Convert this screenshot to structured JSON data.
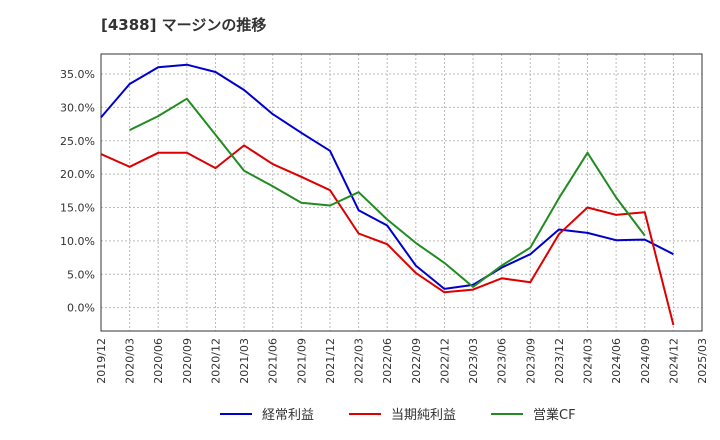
{
  "chart_data": {
    "type": "line",
    "title": "[4388]  マージンの推移",
    "x": [
      "2019/12",
      "2020/03",
      "2020/06",
      "2020/09",
      "2020/12",
      "2021/03",
      "2021/06",
      "2021/09",
      "2021/12",
      "2022/03",
      "2022/06",
      "2022/09",
      "2022/12",
      "2023/03",
      "2023/06",
      "2023/09",
      "2023/12",
      "2024/03",
      "2024/06",
      "2024/09",
      "2024/12",
      "2025/03"
    ],
    "y_ticks": [
      "0.0%",
      "5.0%",
      "10.0%",
      "15.0%",
      "20.0%",
      "25.0%",
      "30.0%",
      "35.0%"
    ],
    "ylim": [
      -3.5,
      38
    ],
    "grid": true,
    "legend_position": "bottom",
    "series": [
      {
        "name": "経常利益",
        "color": "#0000cc",
        "values": [
          28.5,
          33.5,
          36.0,
          36.4,
          35.3,
          32.6,
          29.0,
          26.2,
          23.5,
          14.6,
          12.3,
          6.3,
          2.8,
          3.4,
          6.0,
          8.0,
          11.7,
          11.2,
          10.1,
          10.2,
          8.0,
          null
        ]
      },
      {
        "name": "当期純利益",
        "color": "#dd0000",
        "values": [
          23.0,
          21.1,
          23.2,
          23.2,
          20.9,
          24.3,
          21.5,
          19.6,
          17.6,
          11.1,
          9.5,
          5.2,
          2.3,
          2.7,
          4.4,
          3.8,
          11.0,
          15.0,
          13.9,
          14.3,
          -2.6,
          null
        ]
      },
      {
        "name": "営業CF",
        "color": "#228b22",
        "values": [
          null,
          26.6,
          28.7,
          31.3,
          25.9,
          20.5,
          18.2,
          15.7,
          15.3,
          17.3,
          13.2,
          9.7,
          6.7,
          3.1,
          6.3,
          9.0,
          16.4,
          23.2,
          16.5,
          10.8,
          null,
          null
        ]
      }
    ]
  }
}
